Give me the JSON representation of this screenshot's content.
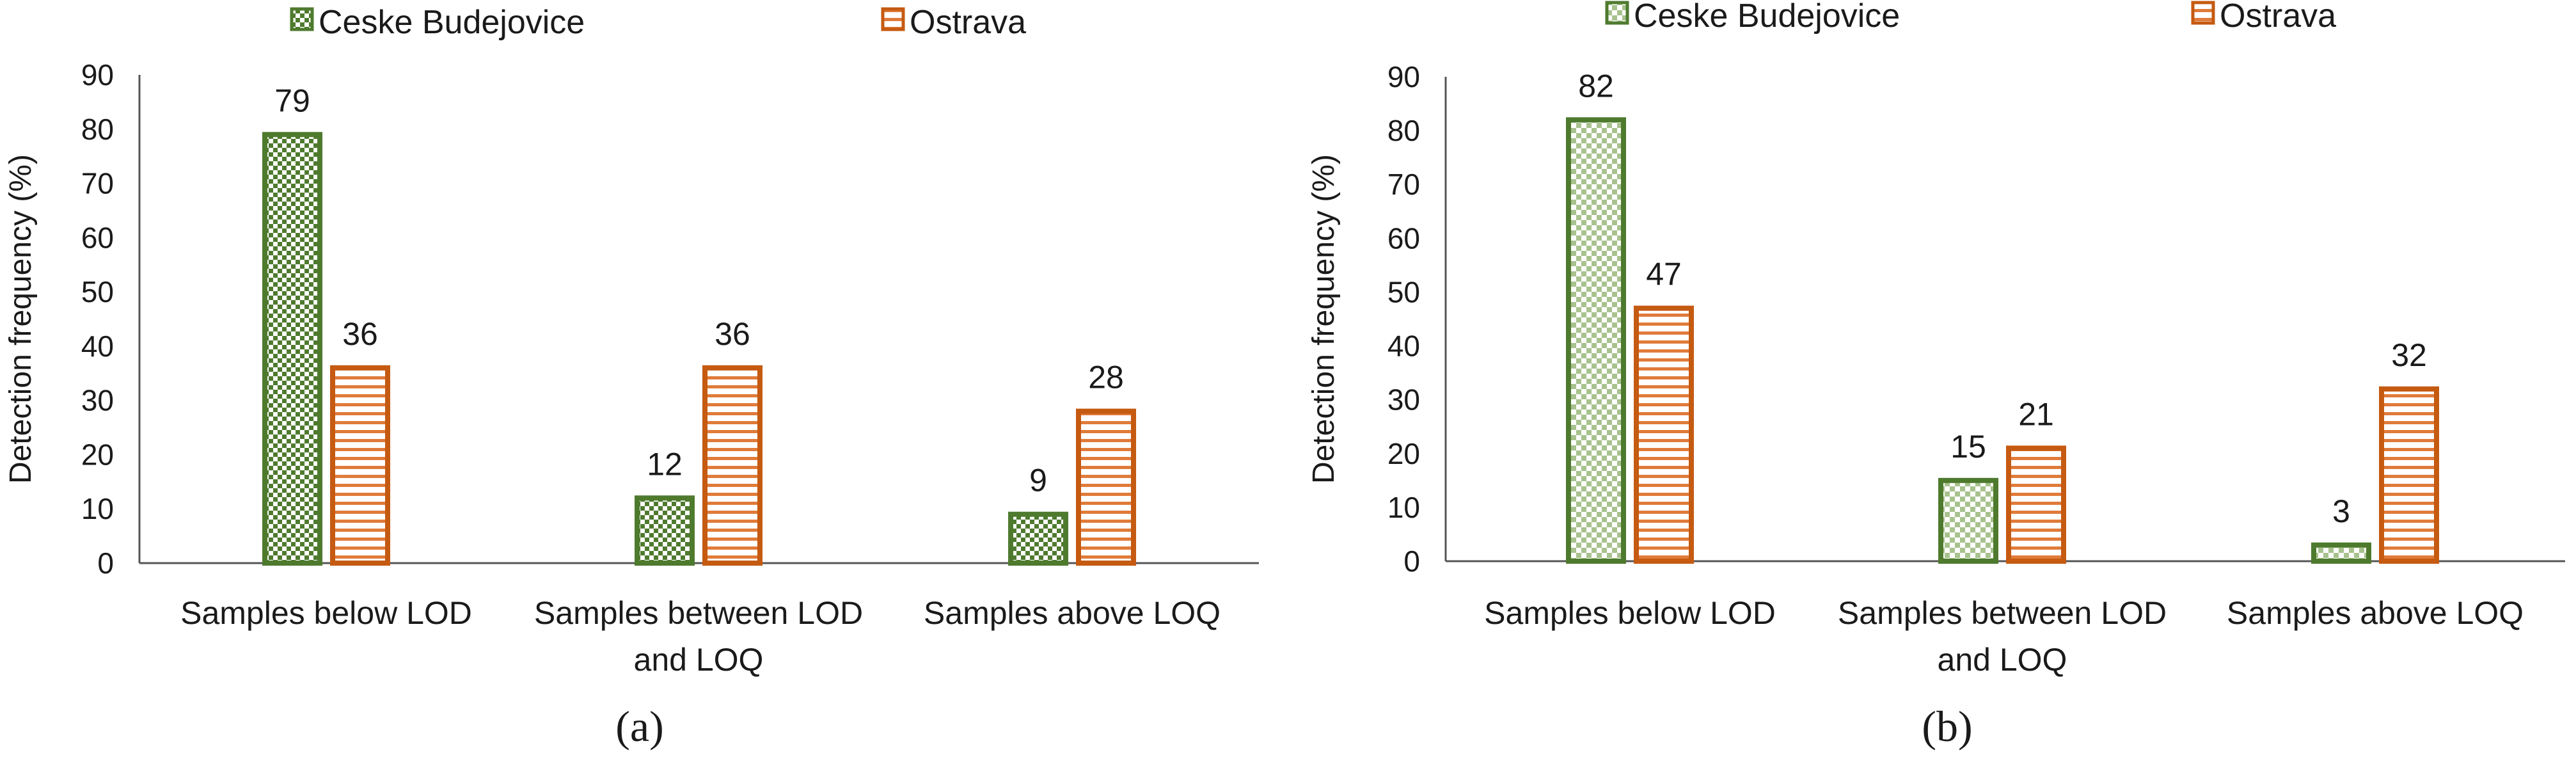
{
  "chart_data": [
    {
      "type": "bar",
      "panel_label": "(a)",
      "categories": [
        [
          "Samples below LOD"
        ],
        [
          "Samples between LOD",
          "and LOQ"
        ],
        [
          "Samples above LOQ"
        ]
      ],
      "series": [
        {
          "name": "Ceske Budejovice",
          "values": [
            79,
            12,
            9
          ],
          "color": "#4e7a2e",
          "pattern": "checker"
        },
        {
          "name": "Ostrava",
          "values": [
            36,
            36,
            28
          ],
          "color": "#c55a11",
          "pattern": "horizontal-lines"
        }
      ],
      "ylabel": "Detection frequency (%)",
      "ylim": [
        0,
        90
      ],
      "yticks": [
        0,
        10,
        20,
        30,
        40,
        50,
        60,
        70,
        80,
        90
      ],
      "legend_position": "top"
    },
    {
      "type": "bar",
      "panel_label": "(b)",
      "categories": [
        [
          "Samples below LOD"
        ],
        [
          "Samples between LOD",
          "and LOQ"
        ],
        [
          "Samples above LOQ"
        ]
      ],
      "series": [
        {
          "name": "Ceske Budejovice",
          "values": [
            82,
            15,
            3
          ],
          "color": "#4e7a2e",
          "pattern": "checker-light"
        },
        {
          "name": "Ostrava",
          "values": [
            47,
            21,
            32
          ],
          "color": "#c55a11",
          "pattern": "horizontal-lines"
        }
      ],
      "ylabel": "Detection frequency (%)",
      "ylim": [
        0,
        90
      ],
      "yticks": [
        0,
        10,
        20,
        30,
        40,
        50,
        60,
        70,
        80,
        90
      ],
      "legend_position": "top"
    }
  ]
}
